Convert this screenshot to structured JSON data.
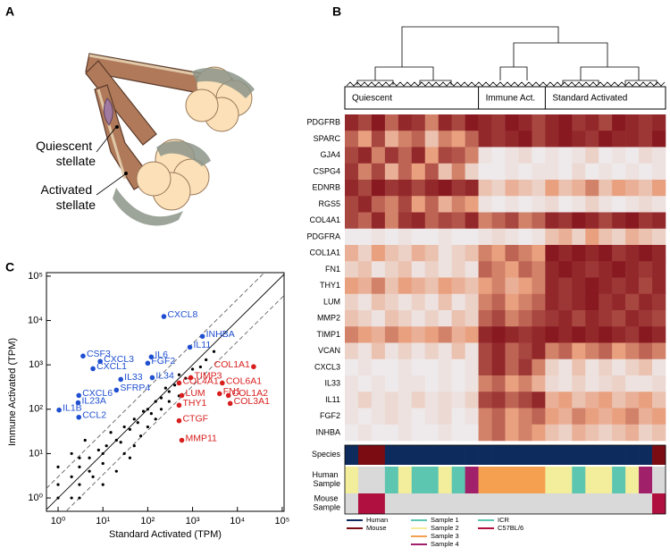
{
  "panel_labels": [
    "A",
    "B",
    "C"
  ],
  "illustration": {
    "labels": [
      "Quiescent stellate",
      "Activated stellate"
    ]
  },
  "chart_data": [
    {
      "type": "heatmap",
      "clusters": [
        {
          "name": "Quiescent",
          "size": 10
        },
        {
          "name": "Immune Act.",
          "size": 5
        },
        {
          "name": "Standard Activated",
          "size": 9
        }
      ],
      "rows": [
        "PDGFRB",
        "SPARC",
        "GJA4",
        "CSPG4",
        "EDNRB",
        "RGS5",
        "COL4A1",
        "PDGFRA",
        "COL1A1",
        "FN1",
        "THY1",
        "LUM",
        "MMP2",
        "TIMP1",
        "VCAN",
        "CXCL3",
        "IL33",
        "IL11",
        "FGF2",
        "INHBA"
      ],
      "color_scale": [
        "#eef2f7",
        "#e9a07f",
        "#7d0a16"
      ],
      "values": [
        [
          0.9,
          0.8,
          0.95,
          0.7,
          0.9,
          0.85,
          0.6,
          0.9,
          0.8,
          0.95,
          0.9,
          0.85,
          0.95,
          0.9,
          0.8,
          0.9,
          0.95,
          0.85,
          0.9,
          0.8,
          0.95,
          0.9,
          0.85,
          0.9
        ],
        [
          0.7,
          0.5,
          0.8,
          0.4,
          0.6,
          0.7,
          0.3,
          0.6,
          0.5,
          0.7,
          0.9,
          0.85,
          0.9,
          0.95,
          0.8,
          0.9,
          0.95,
          0.9,
          0.85,
          0.95,
          0.9,
          0.9,
          0.85,
          0.95
        ],
        [
          0.8,
          0.9,
          0.6,
          0.85,
          0.7,
          0.9,
          0.5,
          0.8,
          0.75,
          0.6,
          0.1,
          0.05,
          0.1,
          0.15,
          0.05,
          0.1,
          0.05,
          0.1,
          0.2,
          0.05,
          0.1,
          0.05,
          0.15,
          0.1
        ],
        [
          0.85,
          0.6,
          0.8,
          0.4,
          0.7,
          0.5,
          0.75,
          0.3,
          0.6,
          0.2,
          0.05,
          0.05,
          0.1,
          0.05,
          0.1,
          0.1,
          0.05,
          0.15,
          0.05,
          0.1,
          0.05,
          0.1,
          0.05,
          0.1
        ],
        [
          0.9,
          0.8,
          0.95,
          0.85,
          0.9,
          0.8,
          0.9,
          0.95,
          0.85,
          0.9,
          0.3,
          0.2,
          0.4,
          0.3,
          0.2,
          0.5,
          0.3,
          0.4,
          0.6,
          0.3,
          0.5,
          0.4,
          0.3,
          0.5
        ],
        [
          0.8,
          0.9,
          0.7,
          0.6,
          0.8,
          0.5,
          0.7,
          0.4,
          0.6,
          0.5,
          0.1,
          0.05,
          0.1,
          0.05,
          0.1,
          0.15,
          0.05,
          0.1,
          0.2,
          0.1,
          0.05,
          0.1,
          0.15,
          0.1
        ],
        [
          0.8,
          0.7,
          0.9,
          0.6,
          0.85,
          0.9,
          0.7,
          0.8,
          0.75,
          0.9,
          0.6,
          0.7,
          0.8,
          0.6,
          0.7,
          0.9,
          0.85,
          0.95,
          0.9,
          0.8,
          0.9,
          0.95,
          0.85,
          0.9
        ],
        [
          0.05,
          0.05,
          0.1,
          0.05,
          0.1,
          0.05,
          0.05,
          0.1,
          0.05,
          0.05,
          0.1,
          0.15,
          0.1,
          0.05,
          0.1,
          0.3,
          0.4,
          0.2,
          0.5,
          0.3,
          0.2,
          0.4,
          0.3,
          0.2
        ],
        [
          0.4,
          0.2,
          0.5,
          0.3,
          0.2,
          0.4,
          0.3,
          0.1,
          0.2,
          0.3,
          0.6,
          0.5,
          0.7,
          0.6,
          0.5,
          0.95,
          0.9,
          0.95,
          0.9,
          0.95,
          0.85,
          0.9,
          0.95,
          0.9
        ],
        [
          0.2,
          0.3,
          0.1,
          0.2,
          0.3,
          0.1,
          0.2,
          0.1,
          0.2,
          0.1,
          0.7,
          0.6,
          0.5,
          0.7,
          0.6,
          0.9,
          0.95,
          0.9,
          0.85,
          0.9,
          0.95,
          0.9,
          0.85,
          0.9
        ],
        [
          0.5,
          0.4,
          0.6,
          0.3,
          0.5,
          0.4,
          0.3,
          0.5,
          0.4,
          0.3,
          0.5,
          0.6,
          0.4,
          0.5,
          0.6,
          0.9,
          0.85,
          0.9,
          0.95,
          0.9,
          0.85,
          0.9,
          0.8,
          0.9
        ],
        [
          0.2,
          0.1,
          0.3,
          0.2,
          0.1,
          0.2,
          0.1,
          0.3,
          0.1,
          0.2,
          0.6,
          0.7,
          0.5,
          0.6,
          0.7,
          0.9,
          0.85,
          0.9,
          0.95,
          0.85,
          0.9,
          0.8,
          0.9,
          0.85
        ],
        [
          0.3,
          0.2,
          0.1,
          0.3,
          0.2,
          0.1,
          0.2,
          0.1,
          0.3,
          0.2,
          0.7,
          0.8,
          0.6,
          0.7,
          0.8,
          0.85,
          0.9,
          0.8,
          0.9,
          0.85,
          0.8,
          0.9,
          0.85,
          0.8
        ],
        [
          0.6,
          0.5,
          0.4,
          0.6,
          0.5,
          0.4,
          0.5,
          0.6,
          0.4,
          0.5,
          0.9,
          0.95,
          0.9,
          0.85,
          0.9,
          0.95,
          0.9,
          0.95,
          0.9,
          0.95,
          0.9,
          0.85,
          0.95,
          0.9
        ],
        [
          0.2,
          0.1,
          0.3,
          0.1,
          0.2,
          0.1,
          0.2,
          0.1,
          0.3,
          0.1,
          0.8,
          0.9,
          0.7,
          0.8,
          0.9,
          0.6,
          0.7,
          0.5,
          0.6,
          0.7,
          0.5,
          0.6,
          0.7,
          0.6
        ],
        [
          0.05,
          0.1,
          0.05,
          0.05,
          0.1,
          0.05,
          0.05,
          0.1,
          0.05,
          0.1,
          0.8,
          0.9,
          0.7,
          0.85,
          0.6,
          0.2,
          0.1,
          0.3,
          0.1,
          0.2,
          0.1,
          0.2,
          0.3,
          0.1
        ],
        [
          0.1,
          0.05,
          0.1,
          0.05,
          0.1,
          0.1,
          0.05,
          0.1,
          0.05,
          0.1,
          0.6,
          0.7,
          0.5,
          0.6,
          0.4,
          0.15,
          0.1,
          0.2,
          0.1,
          0.15,
          0.2,
          0.1,
          0.1,
          0.15
        ],
        [
          0.1,
          0.2,
          0.1,
          0.15,
          0.1,
          0.2,
          0.1,
          0.15,
          0.1,
          0.2,
          0.8,
          0.85,
          0.7,
          0.8,
          0.9,
          0.4,
          0.5,
          0.3,
          0.4,
          0.5,
          0.3,
          0.4,
          0.5,
          0.3
        ],
        [
          0.1,
          0.05,
          0.1,
          0.15,
          0.1,
          0.05,
          0.1,
          0.15,
          0.05,
          0.1,
          0.6,
          0.7,
          0.5,
          0.6,
          0.7,
          0.5,
          0.4,
          0.6,
          0.5,
          0.4,
          0.5,
          0.6,
          0.4,
          0.5
        ],
        [
          0.05,
          0.1,
          0.05,
          0.05,
          0.1,
          0.05,
          0.05,
          0.1,
          0.05,
          0.05,
          0.6,
          0.7,
          0.5,
          0.6,
          0.5,
          0.3,
          0.2,
          0.4,
          0.3,
          0.2,
          0.3,
          0.4,
          0.2,
          0.3
        ]
      ],
      "annotation_rows": [
        {
          "name": "Species",
          "values": [
            "Human",
            "Mouse",
            "Mouse",
            "Human",
            "Human",
            "Human",
            "Human",
            "Human",
            "Human",
            "Human",
            "Human",
            "Human",
            "Human",
            "Human",
            "Human",
            "Human",
            "Human",
            "Human",
            "Human",
            "Human",
            "Human",
            "Human",
            "Human",
            "Mouse"
          ]
        },
        {
          "name": "Human Sample",
          "values": [
            "Sample 2",
            null,
            null,
            "Sample 1",
            "Sample 2",
            "Sample 1",
            "Sample 1",
            "Sample 2",
            "Sample 1",
            "Sample 4",
            "Sample 3",
            "Sample 3",
            "Sample 3",
            "Sample 3",
            "Sample 3",
            "Sample 2",
            "Sample 2",
            "Sample 1",
            "Sample 2",
            "Sample 2",
            "Sample 1",
            "Sample 2",
            "Sample 4",
            null
          ]
        },
        {
          "name": "Mouse Sample",
          "values": [
            null,
            "C57BL/6",
            "C57BL/6",
            null,
            null,
            null,
            null,
            null,
            null,
            null,
            null,
            null,
            null,
            null,
            null,
            null,
            null,
            null,
            null,
            null,
            null,
            null,
            null,
            "C57BL/6"
          ]
        }
      ],
      "missing_color": "#d9d9d9",
      "legend": [
        [
          {
            "name": "Human",
            "color": "#0d2b5c"
          },
          {
            "name": "Mouse",
            "color": "#7a0c12"
          }
        ],
        [
          {
            "name": "Sample 1",
            "color": "#5cc6b0"
          },
          {
            "name": "Sample 2",
            "color": "#f3ee9c"
          },
          {
            "name": "Sample 3",
            "color": "#f5a050"
          },
          {
            "name": "Sample 4",
            "color": "#a0206a"
          }
        ],
        [
          {
            "name": "ICR",
            "color": "#5cc6b0"
          },
          {
            "name": "C57BL/6",
            "color": "#b01040"
          }
        ]
      ]
    },
    {
      "type": "scatter",
      "xlabel": "Standard Activated (TPM)",
      "ylabel": "Immune Activated (TPM)",
      "xscale": "log",
      "yscale": "log",
      "xlim": [
        0.55,
        110000
      ],
      "ylim": [
        0.5,
        120000
      ],
      "xticks": [
        {
          "value": 1,
          "label": "10⁰"
        },
        {
          "value": 10,
          "label": "10¹"
        },
        {
          "value": 100,
          "label": "10²"
        },
        {
          "value": 1000,
          "label": "10³"
        },
        {
          "value": 10000,
          "label": "10⁴"
        },
        {
          "value": 100000,
          "label": "10⁵"
        }
      ],
      "yticks": [
        {
          "value": 1,
          "label": "10⁰"
        },
        {
          "value": 10,
          "label": "10¹"
        },
        {
          "value": 100,
          "label": "10²"
        },
        {
          "value": 1000,
          "label": "10³"
        },
        {
          "value": 10000,
          "label": "10⁴"
        },
        {
          "value": 100000,
          "label": "10⁵"
        }
      ],
      "reference_lines": [
        {
          "fold": 1,
          "style": "solid"
        },
        {
          "fold": 3,
          "style": "dashed"
        },
        {
          "fold": 0.3333,
          "style": "dashed"
        }
      ],
      "series": [
        {
          "color": "#000000",
          "x": [
            1,
            2,
            3,
            1,
            2,
            3,
            5,
            5,
            10,
            10,
            3,
            6,
            8,
            12,
            20,
            15,
            25,
            30,
            40,
            50,
            60,
            80,
            100,
            120,
            150,
            200,
            250,
            300,
            400,
            500,
            700,
            1000,
            1500,
            2000,
            3000,
            30,
            50,
            70,
            100,
            150,
            200,
            300,
            500,
            1,
            2,
            3,
            4,
            10,
            20,
            40
          ],
          "values": [
            1,
            1,
            1,
            2,
            3,
            2,
            4,
            8,
            10,
            6,
            5,
            3,
            12,
            15,
            20,
            30,
            18,
            40,
            35,
            60,
            50,
            90,
            100,
            80,
            150,
            180,
            300,
            250,
            350,
            600,
            500,
            800,
            900,
            1300,
            2000,
            10,
            15,
            25,
            40,
            60,
            100,
            150,
            200,
            5,
            10,
            8,
            20,
            2,
            4,
            8
          ]
        },
        {
          "color": "#1f4fd0",
          "labels": [
            "CXCL8",
            "INHBA",
            "IL11",
            "CSF3",
            "CXCL3",
            "CXCL1",
            "IL6",
            "FGF2",
            "IL33",
            "IL34",
            "SFRP4",
            "CXCL6",
            "IL23A",
            "CCL2",
            "IL1B"
          ],
          "x": [
            229,
            1660,
            870,
            3.6,
            8.7,
            6,
            120,
            100,
            25,
            126,
            20,
            2.9,
            2.8,
            2.9,
            1.05
          ],
          "values": [
            12300,
            4400,
            2500,
            1580,
            1200,
            820,
            1510,
            1090,
            470,
            515,
            270,
            204,
            140,
            66,
            96
          ]
        },
        {
          "color": "#d81e1e",
          "labels": [
            "COL1A1",
            "TIMP3",
            "COL6A1",
            "COL4A1",
            "COL1A2",
            "FN1",
            "LUM",
            "COL3A1",
            "THY1",
            "CTGF",
            "MMP11"
          ],
          "x": [
            23000,
            910,
            4600,
            500,
            6300,
            4000,
            575,
            6900,
            500,
            500,
            575
          ],
          "values": [
            910,
            515,
            390,
            390,
            204,
            224,
            204,
            135,
            123,
            55,
            20
          ]
        }
      ]
    }
  ]
}
